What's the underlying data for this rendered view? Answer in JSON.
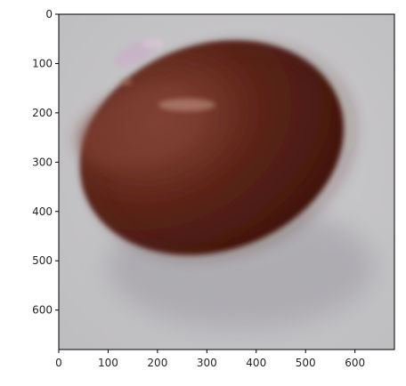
{
  "image": {
    "subject": "brown-candy",
    "background_color": "#c4c3c5",
    "candy_base_color": "#4a1c12",
    "candy_highlight_color": "#8a4a3c",
    "specular_color": "#c9b2c8"
  },
  "axes": {
    "xlim": [
      0,
      680
    ],
    "ylim": [
      680,
      0
    ],
    "x_ticks": [
      {
        "value": 0,
        "label": "0"
      },
      {
        "value": 100,
        "label": "100"
      },
      {
        "value": 200,
        "label": "200"
      },
      {
        "value": 300,
        "label": "300"
      },
      {
        "value": 400,
        "label": "400"
      },
      {
        "value": 500,
        "label": "500"
      },
      {
        "value": 600,
        "label": "600"
      }
    ],
    "y_ticks": [
      {
        "value": 0,
        "label": "0"
      },
      {
        "value": 100,
        "label": "100"
      },
      {
        "value": 200,
        "label": "200"
      },
      {
        "value": 300,
        "label": "300"
      },
      {
        "value": 400,
        "label": "400"
      },
      {
        "value": 500,
        "label": "500"
      },
      {
        "value": 600,
        "label": "600"
      }
    ]
  }
}
